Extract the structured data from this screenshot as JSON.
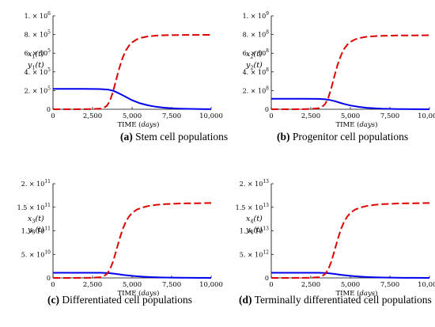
{
  "chart_data": [
    {
      "panel": "a",
      "type": "line",
      "caption_label": "(a)",
      "caption_text": "Stem cell populations",
      "xlabel_main": "TIME",
      "xlabel_unit": "days",
      "ylabel_lines": [
        {
          "var": "x",
          "sub": "1",
          "arg": "(t)"
        },
        {
          "var": "y",
          "sub": "1",
          "arg": "(t)"
        }
      ],
      "xlim": [
        0,
        10000
      ],
      "ylim": [
        0,
        1000000
      ],
      "x_ticks": [
        {
          "value": 0,
          "label": "0"
        },
        {
          "value": 2500,
          "label": "2,500"
        },
        {
          "value": 5000,
          "label": "5,000"
        },
        {
          "value": 7500,
          "label": "7,500"
        },
        {
          "value": 10000,
          "label": "10,000"
        }
      ],
      "y_ticks": [
        {
          "value": 0,
          "mant": "0",
          "exp": ""
        },
        {
          "value": 200000,
          "mant": "2. × 10",
          "exp": "5"
        },
        {
          "value": 400000,
          "mant": "4. × 10",
          "exp": "5"
        },
        {
          "value": 600000,
          "mant": "6. × 10",
          "exp": "5"
        },
        {
          "value": 800000,
          "mant": "8. × 10",
          "exp": "5"
        },
        {
          "value": 1000000,
          "mant": "1. × 10",
          "exp": "6"
        }
      ],
      "series": [
        {
          "color": "#0000ee",
          "dash": "solid",
          "x": [
            0,
            1000,
            2000,
            3000,
            3500,
            3800,
            4000,
            4200,
            4400,
            4600,
            4800,
            5000,
            5500,
            6000,
            6500,
            7000,
            7500,
            8000,
            9000,
            10000
          ],
          "y": [
            218000,
            218000,
            217500,
            216000,
            210000,
            198000,
            184000,
            168000,
            150000,
            132000,
            114000,
            97000,
            64000,
            42000,
            27000,
            17000,
            10500,
            6500,
            3000,
            1200
          ]
        },
        {
          "color": "#dd0000",
          "dash": "dashed",
          "x": [
            0,
            1000,
            2000,
            2500,
            3000,
            3200,
            3400,
            3600,
            3800,
            4000,
            4200,
            4400,
            4600,
            4800,
            5000,
            5300,
            5600,
            6000,
            6500,
            7000,
            8000,
            9000,
            10000
          ],
          "y": [
            0,
            0,
            1000,
            2500,
            8000,
            16000,
            35000,
            90000,
            190000,
            320000,
            445000,
            550000,
            628000,
            680000,
            715000,
            748000,
            766000,
            780000,
            788000,
            792000,
            795000,
            796000,
            797000
          ]
        }
      ]
    },
    {
      "panel": "b",
      "type": "line",
      "caption_label": "(b)",
      "caption_text": "Progenitor cell populations",
      "xlabel_main": "TIME",
      "xlabel_unit": "days",
      "ylabel_lines": [
        {
          "var": "x",
          "sub": "2",
          "arg": "(t)"
        },
        {
          "var": "y",
          "sub": "2",
          "arg": "(t)"
        }
      ],
      "xlim": [
        0,
        10000
      ],
      "ylim": [
        0,
        1000000000
      ],
      "x_ticks": [
        {
          "value": 0,
          "label": "0"
        },
        {
          "value": 2500,
          "label": "2,500"
        },
        {
          "value": 5000,
          "label": "5,000"
        },
        {
          "value": 7500,
          "label": "7,500"
        },
        {
          "value": 10000,
          "label": "10,000"
        }
      ],
      "y_ticks": [
        {
          "value": 0,
          "mant": "0",
          "exp": ""
        },
        {
          "value": 200000000,
          "mant": "2. × 10",
          "exp": "8"
        },
        {
          "value": 400000000,
          "mant": "4. × 10",
          "exp": "8"
        },
        {
          "value": 600000000,
          "mant": "6. × 10",
          "exp": "8"
        },
        {
          "value": 800000000,
          "mant": "8. × 10",
          "exp": "8"
        },
        {
          "value": 1000000000,
          "mant": "1. × 10",
          "exp": "9"
        }
      ],
      "series": [
        {
          "color": "#0000ee",
          "dash": "solid",
          "x": [
            0,
            1000,
            2000,
            3000,
            3400,
            3700,
            4000,
            4300,
            4600,
            5000,
            5500,
            6000,
            6500,
            7000,
            8000,
            9000,
            10000
          ],
          "y": [
            112000000,
            112000000,
            112000000,
            111000000,
            107000000,
            99000000,
            87000000,
            72000000,
            57000000,
            41000000,
            26000000,
            16000000,
            10000000,
            6000000,
            2500000,
            1000000,
            400000
          ]
        },
        {
          "color": "#dd0000",
          "dash": "dashed",
          "x": [
            0,
            1000,
            2000,
            2500,
            3000,
            3200,
            3400,
            3600,
            3800,
            4000,
            4200,
            4400,
            4600,
            4800,
            5000,
            5300,
            5600,
            6000,
            6500,
            7000,
            8000,
            9000,
            10000
          ],
          "y": [
            0,
            0,
            1000000,
            3000000,
            12000000,
            25000000,
            55000000,
            120000000,
            230000000,
            360000000,
            480000000,
            575000000,
            645000000,
            690000000,
            720000000,
            748000000,
            763000000,
            775000000,
            782000000,
            786000000,
            790000000,
            791000000,
            792000000
          ]
        }
      ]
    },
    {
      "panel": "c",
      "type": "line",
      "caption_label": "(c)",
      "caption_text": "Differentiated cell populations",
      "xlabel_main": "TIME",
      "xlabel_unit": "days",
      "ylabel_lines": [
        {
          "var": "x",
          "sub": "3",
          "arg": "(t)"
        },
        {
          "var": "y",
          "sub": "3",
          "arg": "(t)"
        }
      ],
      "xlim": [
        0,
        10000
      ],
      "ylim": [
        0,
        200000000000
      ],
      "x_ticks": [
        {
          "value": 0,
          "label": "0"
        },
        {
          "value": 2500,
          "label": "2,500"
        },
        {
          "value": 5000,
          "label": "5,000"
        },
        {
          "value": 7500,
          "label": "7,500"
        },
        {
          "value": 10000,
          "label": "10,000"
        }
      ],
      "y_ticks": [
        {
          "value": 0,
          "mant": "0",
          "exp": ""
        },
        {
          "value": 50000000000,
          "mant": "5. × 10",
          "exp": "10"
        },
        {
          "value": 100000000000,
          "mant": "1. × 10",
          "exp": "11"
        },
        {
          "value": 150000000000,
          "mant": "1.5 × 10",
          "exp": "11"
        },
        {
          "value": 200000000000,
          "mant": "2. × 10",
          "exp": "11"
        }
      ],
      "series": [
        {
          "color": "#0000ee",
          "dash": "solid",
          "x": [
            0,
            1000,
            2000,
            3000,
            3500,
            3800,
            4100,
            4400,
            4800,
            5200,
            5700,
            6200,
            7000,
            8000,
            9000,
            10000
          ],
          "y": [
            11000000000,
            11000000000,
            11000000000,
            10900000000,
            10300000000,
            9300000000,
            8000000000,
            6600000000,
            5000000000,
            3700000000,
            2500000000,
            1700000000,
            900000000,
            400000000,
            180000000,
            80000000
          ]
        },
        {
          "color": "#dd0000",
          "dash": "dashed",
          "x": [
            0,
            1000,
            2000,
            2500,
            3000,
            3200,
            3400,
            3600,
            3800,
            4000,
            4200,
            4400,
            4600,
            4800,
            5000,
            5300,
            5600,
            6000,
            6500,
            7000,
            8000,
            9000,
            10000
          ],
          "y": [
            0,
            0,
            100000000,
            300000000,
            1500000000,
            3500000000,
            8000000000,
            18000000000,
            35000000000,
            58000000000,
            82000000000,
            103000000000,
            119000000000,
            130000000000,
            138000000000,
            145000000000,
            149000000000,
            152500000000,
            155000000000,
            156500000000,
            158000000000,
            158500000000,
            159000000000
          ]
        }
      ]
    },
    {
      "panel": "d",
      "type": "line",
      "caption_label": "(d)",
      "caption_text": "Terminally differentiated cell populations",
      "xlabel_main": "TIME",
      "xlabel_unit": "days",
      "ylabel_lines": [
        {
          "var": "x",
          "sub": "4",
          "arg": "(t)"
        },
        {
          "var": "y",
          "sub": "4",
          "arg": "(t)"
        }
      ],
      "xlim": [
        0,
        10000
      ],
      "ylim": [
        0,
        20000000000000
      ],
      "x_ticks": [
        {
          "value": 0,
          "label": "0"
        },
        {
          "value": 2500,
          "label": "2,500"
        },
        {
          "value": 5000,
          "label": "5,000"
        },
        {
          "value": 7500,
          "label": "7,500"
        },
        {
          "value": 10000,
          "label": "10,000"
        }
      ],
      "y_ticks": [
        {
          "value": 0,
          "mant": "0",
          "exp": ""
        },
        {
          "value": 5000000000000,
          "mant": "5. × 10",
          "exp": "12"
        },
        {
          "value": 10000000000000,
          "mant": "1. × 10",
          "exp": "13"
        },
        {
          "value": 15000000000000,
          "mant": "1.5 × 10",
          "exp": "13"
        },
        {
          "value": 20000000000000,
          "mant": "2. × 10",
          "exp": "13"
        }
      ],
      "series": [
        {
          "color": "#0000ee",
          "dash": "solid",
          "x": [
            0,
            1000,
            2000,
            3000,
            3500,
            3800,
            4100,
            4400,
            4800,
            5200,
            5700,
            6200,
            7000,
            8000,
            9000,
            10000
          ],
          "y": [
            1100000000000,
            1100000000000,
            1100000000000,
            1090000000000,
            1030000000000,
            930000000000,
            800000000000,
            660000000000,
            500000000000,
            370000000000,
            250000000000,
            170000000000,
            90000000000,
            40000000000,
            18000000000,
            8000000000
          ]
        },
        {
          "color": "#dd0000",
          "dash": "dashed",
          "x": [
            0,
            1000,
            2000,
            2500,
            3000,
            3200,
            3400,
            3600,
            3800,
            4000,
            4200,
            4400,
            4600,
            4800,
            5000,
            5300,
            5600,
            6000,
            6500,
            7000,
            8000,
            9000,
            10000
          ],
          "y": [
            0,
            0,
            10000000000,
            30000000000,
            150000000000,
            350000000000,
            800000000000,
            1800000000000,
            3500000000000,
            5800000000000,
            8200000000000,
            10300000000000,
            11900000000000,
            13000000000000,
            13800000000000,
            14500000000000,
            14900000000000,
            15250000000000,
            15500000000000,
            15650000000000,
            15800000000000,
            15850000000000,
            15900000000000
          ]
        }
      ]
    }
  ]
}
